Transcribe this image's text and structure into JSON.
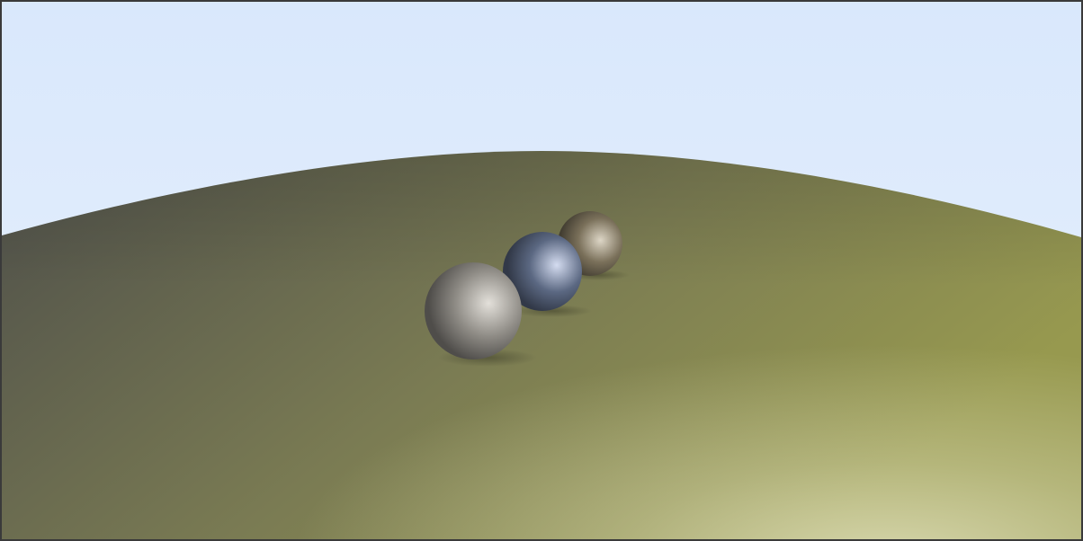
{
  "scene": {
    "sky_top_color": "#d9e8fc",
    "sky_bottom_color": "#e7f0fb",
    "ground_dark_color": "#4e4f4a",
    "ground_mid_color": "#7a7b53",
    "ground_olive_color": "#97994f",
    "ground_highlight_color": "#d9d9b0",
    "spheres": [
      {
        "name": "large-grey-sphere",
        "material": "grey",
        "base_color": "#8f8c86",
        "highlight_color": "#e3e0da"
      },
      {
        "name": "blue-sphere",
        "material": "blue-grey",
        "base_color": "#5b6882",
        "highlight_color": "#d4dcf0"
      },
      {
        "name": "tan-sphere",
        "material": "tan",
        "base_color": "#7a705a",
        "highlight_color": "#ddd6c6"
      }
    ]
  }
}
